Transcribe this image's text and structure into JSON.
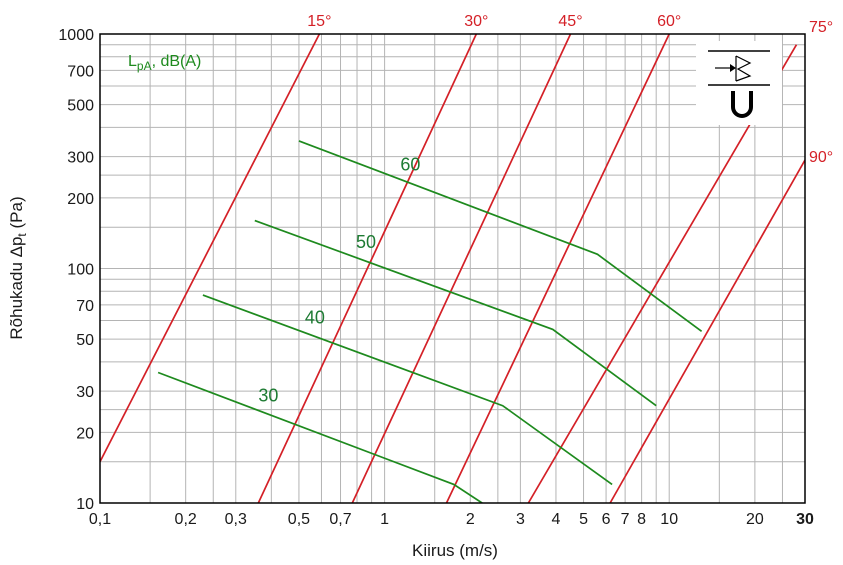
{
  "chart_data": {
    "type": "line",
    "xscale": "log",
    "yscale": "log",
    "xlabel": "Kiirus (m/s)",
    "ylabel_main": "Rõhukadu Δp",
    "ylabel_sub": "t",
    "ylabel_unit": " (Pa)",
    "xlim": [
      0.1,
      30
    ],
    "ylim": [
      10,
      1000
    ],
    "xticks": [
      {
        "v": 0.1,
        "label": "0,1"
      },
      {
        "v": 0.2,
        "label": "0,2"
      },
      {
        "v": 0.3,
        "label": "0,3"
      },
      {
        "v": 0.5,
        "label": "0,5"
      },
      {
        "v": 0.7,
        "label": "0,7"
      },
      {
        "v": 1,
        "label": "1"
      },
      {
        "v": 2,
        "label": "2"
      },
      {
        "v": 3,
        "label": "3"
      },
      {
        "v": 4,
        "label": "4"
      },
      {
        "v": 5,
        "label": "5"
      },
      {
        "v": 6,
        "label": "6"
      },
      {
        "v": 7,
        "label": "7"
      },
      {
        "v": 8,
        "label": "8"
      },
      {
        "v": 10,
        "label": "10"
      },
      {
        "v": 20,
        "label": "20"
      },
      {
        "v": 30,
        "label": "30"
      }
    ],
    "yticks": [
      {
        "v": 10,
        "label": "10"
      },
      {
        "v": 20,
        "label": "20"
      },
      {
        "v": 30,
        "label": "30"
      },
      {
        "v": 50,
        "label": "50"
      },
      {
        "v": 70,
        "label": "70"
      },
      {
        "v": 100,
        "label": "100"
      },
      {
        "v": 200,
        "label": "200"
      },
      {
        "v": 300,
        "label": "300"
      },
      {
        "v": 500,
        "label": "500"
      },
      {
        "v": 700,
        "label": "700"
      },
      {
        "v": 1000,
        "label": "1000"
      }
    ],
    "xgrid": [
      0.15,
      0.2,
      0.25,
      0.3,
      0.4,
      0.5,
      0.6,
      0.7,
      0.8,
      0.9,
      1,
      1.5,
      2,
      2.5,
      3,
      4,
      5,
      6,
      7,
      8,
      9,
      10,
      15,
      20,
      25,
      30
    ],
    "ygrid": [
      15,
      20,
      25,
      30,
      40,
      50,
      60,
      70,
      80,
      90,
      100,
      150,
      200,
      250,
      300,
      400,
      500,
      600,
      700,
      800,
      900,
      1000
    ],
    "grid": true,
    "legend_text_main": "L",
    "legend_text_sub": "pA",
    "legend_text_unit": ", dB(A)",
    "legend_position": "top-left",
    "angle_lines": [
      {
        "label": "15°",
        "points": [
          [
            0.1,
            15
          ],
          [
            0.59,
            1000
          ]
        ]
      },
      {
        "label": "30°",
        "points": [
          [
            0.36,
            10
          ],
          [
            2.1,
            1000
          ]
        ]
      },
      {
        "label": "45°",
        "points": [
          [
            0.77,
            10
          ],
          [
            4.5,
            1000
          ]
        ]
      },
      {
        "label": "60°",
        "points": [
          [
            1.65,
            10
          ],
          [
            10,
            1000
          ]
        ]
      },
      {
        "label": "75°",
        "points": [
          [
            3.2,
            10
          ],
          [
            28,
            900
          ]
        ]
      },
      {
        "label": "90°",
        "points": [
          [
            6.2,
            10
          ],
          [
            30,
            290
          ]
        ]
      }
    ],
    "sound_curves": [
      {
        "label": "30",
        "points": [
          [
            0.16,
            36
          ],
          [
            1.75,
            12
          ],
          [
            2.2,
            10
          ]
        ]
      },
      {
        "label": "40",
        "points": [
          [
            0.23,
            77
          ],
          [
            2.6,
            26
          ],
          [
            6.3,
            12
          ]
        ]
      },
      {
        "label": "50",
        "points": [
          [
            0.35,
            160
          ],
          [
            3.9,
            55
          ],
          [
            9,
            26
          ]
        ]
      },
      {
        "label": "60",
        "points": [
          [
            0.5,
            350
          ],
          [
            5.6,
            115
          ],
          [
            13,
            54
          ]
        ]
      }
    ],
    "colors": {
      "angle": "#d42027",
      "sound": "#1e8a1e",
      "sound_label": "#1e7b33",
      "grid": "#b4b4b4",
      "axis": "#000000"
    }
  }
}
